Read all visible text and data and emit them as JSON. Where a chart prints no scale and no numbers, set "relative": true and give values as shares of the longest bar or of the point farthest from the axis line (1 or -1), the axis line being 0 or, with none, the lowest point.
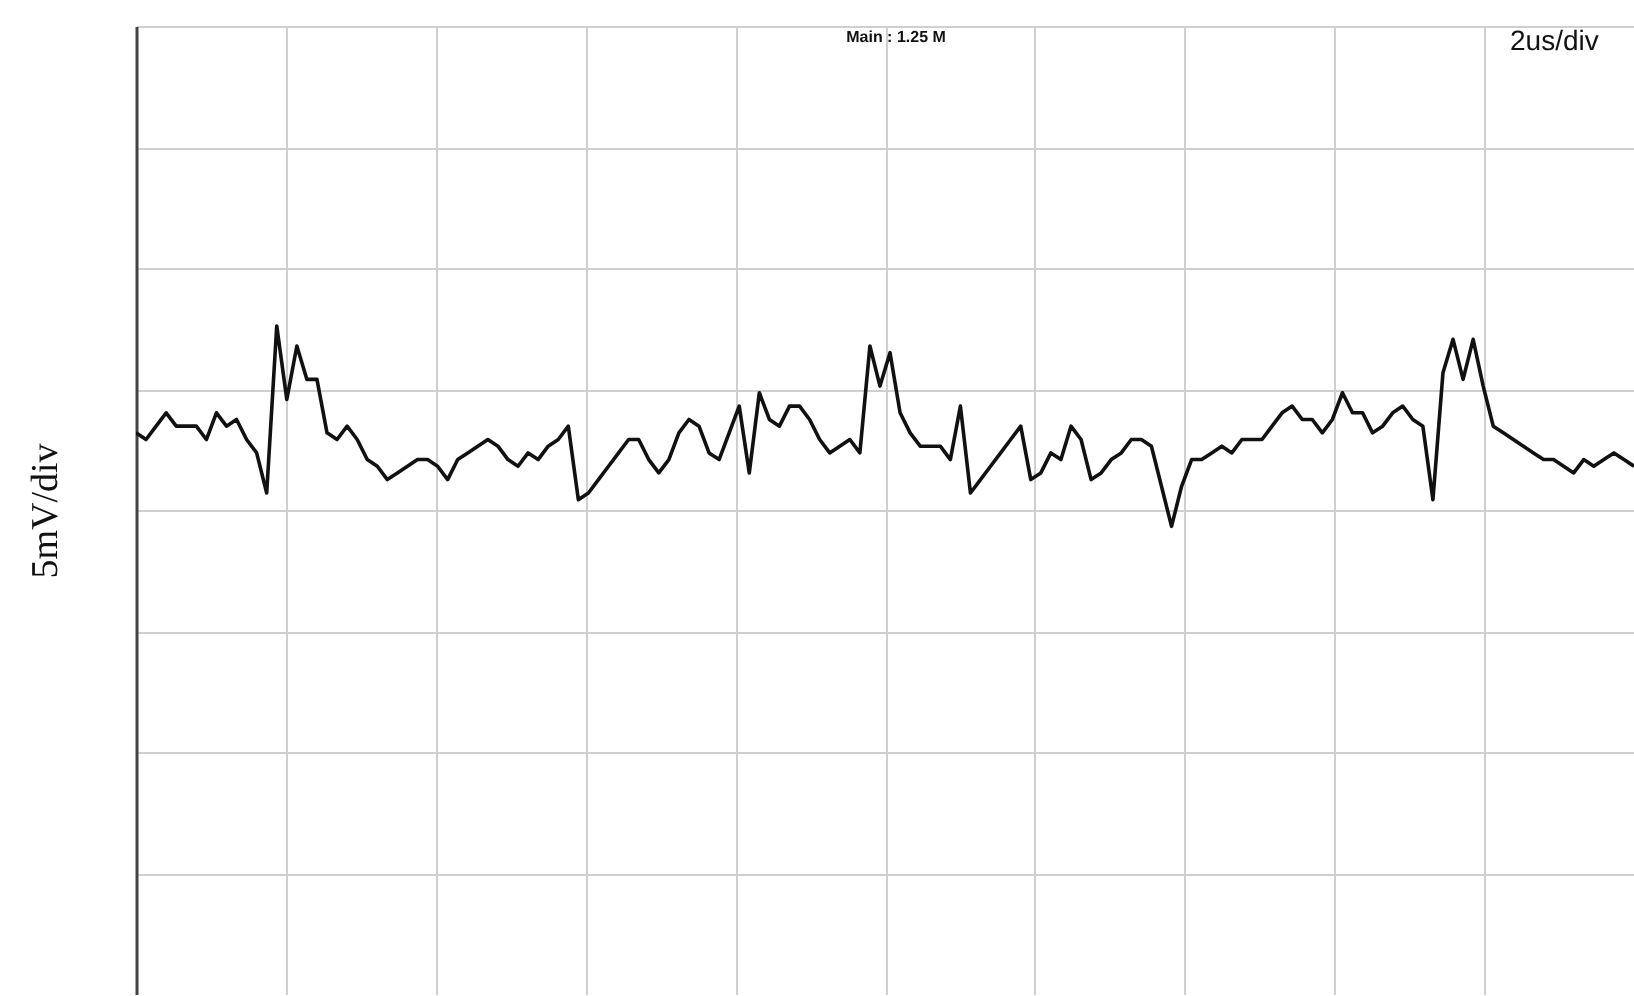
{
  "chart_data": {
    "type": "line",
    "relative": true,
    "grid": true,
    "ylabel": "5mV/div",
    "annotations": [
      "Main : 1.25 M",
      "2us/div"
    ],
    "categories": [
      null,
      null,
      null,
      null,
      null,
      null,
      null,
      null,
      null,
      null,
      null,
      null,
      null,
      null,
      null,
      null,
      null,
      null,
      null,
      null,
      null,
      null,
      null,
      null,
      null,
      null,
      null,
      null,
      null,
      null,
      null,
      null,
      null,
      null,
      null,
      null,
      null,
      null,
      null,
      null,
      null,
      null,
      null,
      null,
      null,
      null,
      null,
      null,
      null,
      null,
      null,
      null,
      null,
      null,
      null,
      null,
      null,
      null,
      null,
      null,
      null,
      null,
      null,
      null,
      null,
      null,
      null,
      null,
      null,
      null,
      null,
      null,
      null,
      null,
      null,
      null,
      null,
      null,
      null,
      null,
      null,
      null,
      null,
      null,
      null,
      null,
      null,
      null,
      null,
      null,
      null,
      null,
      null,
      null,
      null,
      null,
      null,
      null,
      null,
      null,
      null,
      null,
      null,
      null,
      null,
      null,
      null,
      null,
      null,
      null,
      null,
      null,
      null,
      null,
      null,
      null,
      null,
      null,
      null,
      null,
      null,
      null,
      null,
      null,
      null,
      null,
      null,
      null,
      null,
      null,
      null,
      null,
      null,
      null,
      null,
      null,
      null,
      null,
      null,
      null,
      null,
      null,
      null,
      null,
      null,
      null,
      null,
      null,
      null,
      null
    ],
    "series": [
      {
        "color": "#111111",
        "values": [
          0.84,
          0.83,
          0.85,
          0.87,
          0.85,
          0.85,
          0.85,
          0.83,
          0.87,
          0.85,
          0.86,
          0.83,
          0.81,
          0.75,
          1.0,
          0.89,
          0.97,
          0.92,
          0.92,
          0.84,
          0.83,
          0.85,
          0.83,
          0.8,
          0.79,
          0.77,
          0.78,
          0.79,
          0.8,
          0.8,
          0.79,
          0.77,
          0.8,
          0.81,
          0.82,
          0.83,
          0.82,
          0.8,
          0.79,
          0.81,
          0.8,
          0.82,
          0.83,
          0.85,
          0.74,
          0.75,
          0.77,
          0.79,
          0.81,
          0.83,
          0.83,
          0.8,
          0.78,
          0.8,
          0.84,
          0.86,
          0.85,
          0.81,
          0.8,
          0.84,
          0.88,
          0.78,
          0.9,
          0.86,
          0.85,
          0.88,
          0.88,
          0.86,
          0.83,
          0.81,
          0.82,
          0.83,
          0.81,
          0.97,
          0.91,
          0.96,
          0.87,
          0.84,
          0.82,
          0.82,
          0.82,
          0.8,
          0.88,
          0.75,
          0.77,
          0.79,
          0.81,
          0.83,
          0.85,
          0.77,
          0.78,
          0.81,
          0.8,
          0.85,
          0.83,
          0.77,
          0.78,
          0.8,
          0.81,
          0.83,
          0.83,
          0.82,
          0.76,
          0.7,
          0.76,
          0.8,
          0.8,
          0.81,
          0.82,
          0.81,
          0.83,
          0.83,
          0.83,
          0.85,
          0.87,
          0.88,
          0.86,
          0.86,
          0.84,
          0.86,
          0.9,
          0.87,
          0.87,
          0.84,
          0.85,
          0.87,
          0.88,
          0.86,
          0.85,
          0.74,
          0.93,
          0.98,
          0.92,
          0.98,
          0.91,
          0.85,
          0.84,
          0.83,
          0.82,
          0.81,
          0.8,
          0.8,
          0.79,
          0.78,
          0.8,
          0.79,
          0.8,
          0.81,
          0.8,
          0.79
        ]
      }
    ]
  }
}
